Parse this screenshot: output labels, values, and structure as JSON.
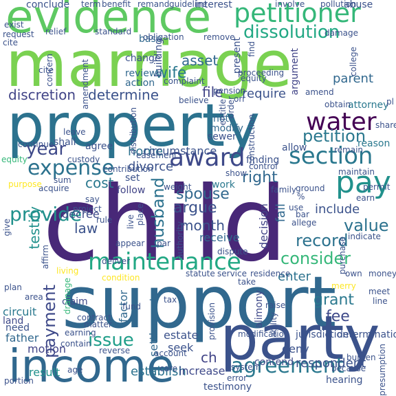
{
  "palette": {
    "dark_purple": "#440154",
    "indigo": "#3b528b",
    "blue": "#31688e",
    "teal": "#21918c",
    "green": "#35b779",
    "lime": "#5ec962",
    "yellow_green": "#90d743",
    "yellow": "#fde725"
  },
  "words": [
    {
      "text": "marriage",
      "color": "#7ad151"
    },
    {
      "text": "child",
      "color": "#482878"
    },
    {
      "text": "support",
      "color": "#31688e"
    },
    {
      "text": "property",
      "color": "#2c728e"
    },
    {
      "text": "party",
      "color": "#3b528b"
    },
    {
      "text": "income",
      "color": "#31688e"
    },
    {
      "text": "evidence",
      "color": "#5ec962"
    },
    {
      "text": "petitioner",
      "color": "#35b779"
    },
    {
      "text": "maintenance",
      "color": "#22a884"
    },
    {
      "text": "pay",
      "color": "#21918c"
    },
    {
      "text": "water",
      "color": "#440154"
    },
    {
      "text": "award",
      "color": "#3e4989"
    },
    {
      "text": "section",
      "color": "#2a788e"
    },
    {
      "text": "expense",
      "color": "#2c728e"
    },
    {
      "text": "agreement",
      "color": "#2a788e"
    },
    {
      "text": "consider",
      "color": "#35b779"
    },
    {
      "text": "dissolution",
      "color": "#22a884"
    },
    {
      "text": "discretion",
      "color": "#414487"
    },
    {
      "text": "determine",
      "color": "#3b528b"
    },
    {
      "text": "year",
      "color": "#3e4989"
    },
    {
      "text": "petition",
      "color": "#2a788e"
    },
    {
      "text": "provide",
      "color": "#21918c"
    },
    {
      "text": "payment",
      "color": "#3e4989"
    },
    {
      "text": "issue",
      "color": "#1f9e89"
    },
    {
      "text": "husband",
      "color": "#2c728e"
    },
    {
      "text": "value",
      "color": "#2c728e"
    },
    {
      "text": "record",
      "color": "#2c728e"
    },
    {
      "text": "right",
      "color": "#31688e"
    },
    {
      "text": "testify",
      "color": "#21918c"
    },
    {
      "text": "spouse",
      "color": "#31688e"
    },
    {
      "text": "argue",
      "color": "#3b528b"
    },
    {
      "text": "month",
      "color": "#3b528b"
    },
    {
      "text": "cost",
      "color": "#2a788e"
    },
    {
      "text": "law",
      "color": "#3b528b"
    },
    {
      "text": "wife",
      "color": "#2a788e"
    },
    {
      "text": "asset",
      "color": "#31688e"
    },
    {
      "text": "file",
      "color": "#414487"
    },
    {
      "text": "parent",
      "color": "#31688e"
    },
    {
      "text": "require",
      "color": "#3b528b"
    },
    {
      "text": "grant",
      "color": "#2a788e"
    },
    {
      "text": "fee",
      "color": "#3e4989"
    },
    {
      "text": "include",
      "color": "#3b528b"
    },
    {
      "text": "respondent",
      "color": "#3b528b"
    },
    {
      "text": "contend",
      "color": "#3e4989"
    },
    {
      "text": "establish",
      "color": "#2c728e"
    },
    {
      "text": "increase",
      "color": "#3e4989"
    },
    {
      "text": "result",
      "color": "#21918c"
    },
    {
      "text": "motion",
      "color": "#414487"
    },
    {
      "text": "father",
      "color": "#31688e"
    },
    {
      "text": "land",
      "color": "#3e4989"
    },
    {
      "text": "need",
      "color": "#3b528b"
    },
    {
      "text": "circuit",
      "color": "#2a788e"
    },
    {
      "text": "estate",
      "color": "#3b528b"
    },
    {
      "text": "seek",
      "color": "#3b528b"
    },
    {
      "text": "factor",
      "color": "#31688e"
    },
    {
      "text": "settlement",
      "color": "#31688e"
    },
    {
      "text": "claim",
      "color": "#3e4989"
    },
    {
      "text": "divorce",
      "color": "#3b528b"
    },
    {
      "text": "home",
      "color": "#2c728e"
    },
    {
      "text": "circumstance",
      "color": "#3b528b"
    },
    {
      "text": "follow",
      "color": "#414487"
    },
    {
      "text": "receive",
      "color": "#31688e"
    },
    {
      "text": "work",
      "color": "#2a788e"
    },
    {
      "text": "decree",
      "color": "#3e4989"
    },
    {
      "text": "enter",
      "color": "#2c728e"
    },
    {
      "text": "alimony",
      "color": "#3e4989"
    },
    {
      "text": "deny",
      "color": "#3b528b"
    },
    {
      "text": "ch",
      "color": "#414487"
    },
    {
      "text": "fail",
      "color": "#31688e"
    },
    {
      "text": "decision",
      "color": "#414487"
    },
    {
      "text": "review",
      "color": "#31688e"
    },
    {
      "text": "action",
      "color": "#31688e"
    },
    {
      "text": "change",
      "color": "#3b528b"
    },
    {
      "text": "base",
      "color": "#31688e"
    },
    {
      "text": "building",
      "color": "#3b528b"
    },
    {
      "text": "present",
      "color": "#3b528b"
    },
    {
      "text": "argument",
      "color": "#414487"
    },
    {
      "text": "shall",
      "color": "#3b528b"
    },
    {
      "text": "agree",
      "color": "#3b528b"
    },
    {
      "text": "note",
      "color": "#31688e"
    },
    {
      "text": "modify",
      "color": "#31688e"
    },
    {
      "text": "sewer",
      "color": "#3b528b"
    },
    {
      "text": "finding",
      "color": "#3b528b"
    },
    {
      "text": "set",
      "color": "#3b528b"
    },
    {
      "text": "allow",
      "color": "#3b528b"
    },
    {
      "text": "conclude",
      "color": "#3b528b"
    },
    {
      "text": "interest",
      "color": "#3b528b"
    },
    {
      "text": "abuse",
      "color": "#3b528b"
    },
    {
      "text": "attorney",
      "color": "#2a788e"
    },
    {
      "text": "reason",
      "color": "#2a788e"
    },
    {
      "text": "hearing",
      "color": "#3b528b"
    },
    {
      "text": "determination",
      "color": "#3b528b"
    },
    {
      "text": "jurisdiction",
      "color": "#3b528b"
    },
    {
      "text": "modification",
      "color": "#3b528b"
    },
    {
      "text": "system",
      "color": "#3b528b"
    },
    {
      "text": "error",
      "color": "#3b528b"
    },
    {
      "text": "testimony",
      "color": "#3b528b"
    },
    {
      "text": "raise",
      "color": "#3b528b"
    },
    {
      "text": "statute",
      "color": "#3b528b"
    },
    {
      "text": "service",
      "color": "#3b528b"
    },
    {
      "text": "residence",
      "color": "#3b528b"
    },
    {
      "text": "purchase",
      "color": "#3b528b"
    },
    {
      "text": "own",
      "color": "#3b528b"
    },
    {
      "text": "take",
      "color": "#3b528b"
    },
    {
      "text": "tax",
      "color": "#3b528b"
    },
    {
      "text": "fund",
      "color": "#3b528b"
    },
    {
      "text": "matter",
      "color": "#3b528b"
    },
    {
      "text": "contract",
      "color": "#3b528b"
    },
    {
      "text": "plan",
      "color": "#3b528b"
    },
    {
      "text": "provision",
      "color": "#3b528b"
    },
    {
      "text": "ability",
      "color": "#3b528b"
    },
    {
      "text": "authority",
      "color": "#3b528b"
    },
    {
      "text": "dispute",
      "color": "#3b528b"
    },
    {
      "text": "weight",
      "color": "#3b528b"
    },
    {
      "text": "acquire",
      "color": "#3b528b"
    },
    {
      "text": "purpose",
      "color": "#fde725"
    },
    {
      "text": "show",
      "color": "#3b528b"
    },
    {
      "text": "ground",
      "color": "#3b528b"
    },
    {
      "text": "family",
      "color": "#3b528b"
    },
    {
      "text": "remain",
      "color": "#3b528b"
    },
    {
      "text": "maintain",
      "color": "#3b528b"
    },
    {
      "text": "earn",
      "color": "#3b528b"
    },
    {
      "text": "custody",
      "color": "#3b528b"
    },
    {
      "text": "leave",
      "color": "#3b528b"
    },
    {
      "text": "continue",
      "color": "#3b528b"
    },
    {
      "text": "equity",
      "color": "#35b779"
    },
    {
      "text": "sum",
      "color": "#3b528b"
    },
    {
      "text": "say",
      "color": "#3b528b"
    },
    {
      "text": "project",
      "color": "#3b528b"
    },
    {
      "text": "rule",
      "color": "#3b528b"
    },
    {
      "text": "live",
      "color": "#3b528b"
    },
    {
      "text": "place",
      "color": "#3b528b"
    },
    {
      "text": "appear",
      "color": "#3b528b"
    },
    {
      "text": "par",
      "color": "#3b528b"
    },
    {
      "text": "deliver",
      "color": "#3b528b"
    },
    {
      "text": "living",
      "color": "#fde725"
    },
    {
      "text": "condition",
      "color": "#fde725"
    },
    {
      "text": "affirm",
      "color": "#3b528b"
    },
    {
      "text": "give",
      "color": "#3b528b"
    },
    {
      "text": "drainage",
      "color": "#35b779"
    },
    {
      "text": "earning",
      "color": "#3b528b"
    },
    {
      "text": "contain",
      "color": "#3b528b"
    },
    {
      "text": "reverse",
      "color": "#3b528b"
    },
    {
      "text": "account",
      "color": "#3b528b"
    },
    {
      "text": "age",
      "color": "#3b528b"
    },
    {
      "text": "care",
      "color": "#3b528b"
    },
    {
      "text": "portion",
      "color": "#3b528b"
    },
    {
      "text": "because",
      "color": "#3b528b"
    },
    {
      "text": "burden",
      "color": "#3b528b"
    },
    {
      "text": "presumption",
      "color": "#3b528b"
    },
    {
      "text": "meet",
      "color": "#3b528b"
    },
    {
      "text": "line",
      "color": "#3b528b"
    },
    {
      "text": "merry",
      "color": "#fde725"
    },
    {
      "text": "money",
      "color": "#3b528b"
    },
    {
      "text": "indicate",
      "color": "#3b528b"
    },
    {
      "text": "allege",
      "color": "#3b528b"
    },
    {
      "text": "use",
      "color": "#3b528b"
    },
    {
      "text": "bar",
      "color": "#3b528b"
    },
    {
      "text": "permit",
      "color": "#3b528b"
    },
    {
      "text": "share",
      "color": "#3b528b"
    },
    {
      "text": "obtain",
      "color": "#3b528b"
    },
    {
      "text": "amend",
      "color": "#3b528b"
    },
    {
      "text": "college",
      "color": "#3b528b"
    },
    {
      "text": "control",
      "color": "#3b528b"
    },
    {
      "text": "construction",
      "color": "#3b528b"
    },
    {
      "text": "entitle",
      "color": "#3b528b"
    },
    {
      "text": "believe",
      "color": "#3b528b"
    },
    {
      "text": "pension",
      "color": "#3b528b"
    },
    {
      "text": "complaint",
      "color": "#3b528b"
    },
    {
      "text": "proceeding",
      "color": "#3b528b"
    },
    {
      "text": "distribution",
      "color": "#3b528b"
    },
    {
      "text": "contribution",
      "color": "#3b528b"
    },
    {
      "text": "easement",
      "color": "#3b528b"
    },
    {
      "text": "concern",
      "color": "#3b528b"
    },
    {
      "text": "amendment",
      "color": "#3b528b"
    },
    {
      "text": "cite",
      "color": "#3b528b"
    },
    {
      "text": "request",
      "color": "#3b528b"
    },
    {
      "text": "exist",
      "color": "#3b528b"
    },
    {
      "text": "relief",
      "color": "#3b528b"
    },
    {
      "text": "standard",
      "color": "#3b528b"
    },
    {
      "text": "obligation",
      "color": "#3b528b"
    },
    {
      "text": "remove",
      "color": "#3b528b"
    },
    {
      "text": "damage",
      "color": "#3b528b"
    },
    {
      "text": "involve",
      "color": "#3b528b"
    },
    {
      "text": "pollution",
      "color": "#3b528b"
    },
    {
      "text": "term",
      "color": "#3b528b"
    },
    {
      "text": "benefit",
      "color": "#3b528b"
    },
    {
      "text": "remand",
      "color": "#3b528b"
    },
    {
      "text": "guideline",
      "color": "#3b528b"
    },
    {
      "text": "%",
      "color": "#3b528b"
    },
    {
      "text": "equity",
      "color": "#3b528b"
    },
    {
      "text": "orr",
      "color": "#3b528b"
    },
    {
      "text": "pl",
      "color": "#3b528b"
    },
    {
      "text": "cite",
      "color": "#3b528b"
    },
    {
      "text": "order",
      "color": "#3b528b"
    },
    {
      "text": "find",
      "color": "#3b528b"
    },
    {
      "text": "area",
      "color": "#3b528b"
    }
  ]
}
